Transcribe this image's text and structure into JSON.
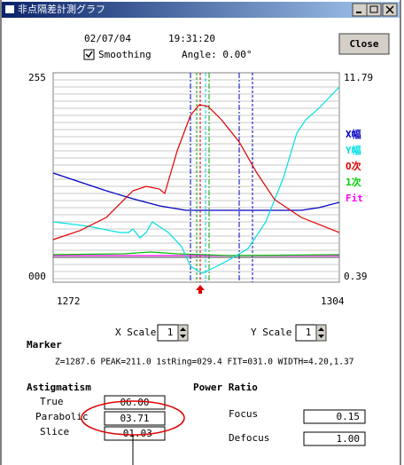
{
  "window": {
    "title": "非点隔差計測グラフ"
  },
  "header": {
    "date": "02/07/04",
    "time": "19:31:20",
    "close": "Close",
    "smoothing": "Smoothing",
    "angle": "Angle: 0.00°"
  },
  "graph": {
    "y_left_top": "255",
    "y_left_bottom": "000",
    "y_right_top": "11.79",
    "y_right_bottom": "0.39",
    "x_left": "1272",
    "x_right": "1304",
    "legend": [
      "X幅",
      "Y幅",
      "O次",
      "1次",
      "Fit"
    ]
  },
  "scale": {
    "x_label": "X Scale",
    "x_value": "1",
    "y_label": "Y Scale",
    "y_value": "1"
  },
  "marker": {
    "title": "Marker",
    "text": "Z=1287.6 PEAK=211.0 1stRing=029.4 FIT=031.0 WIDTH=4.20,1.37"
  },
  "astigmatism": {
    "title": "Astigmatism",
    "rows": [
      {
        "label": "True",
        "value": "06.00"
      },
      {
        "label": "Parabolic",
        "value": "03.71"
      },
      {
        "label": "Slice",
        "value": "-01.03"
      }
    ]
  },
  "power_ratio": {
    "title": "Power Ratio",
    "rows": [
      {
        "label": "Focus",
        "value": "0.15"
      },
      {
        "label": "Defocus",
        "value": "1.00"
      }
    ]
  }
}
